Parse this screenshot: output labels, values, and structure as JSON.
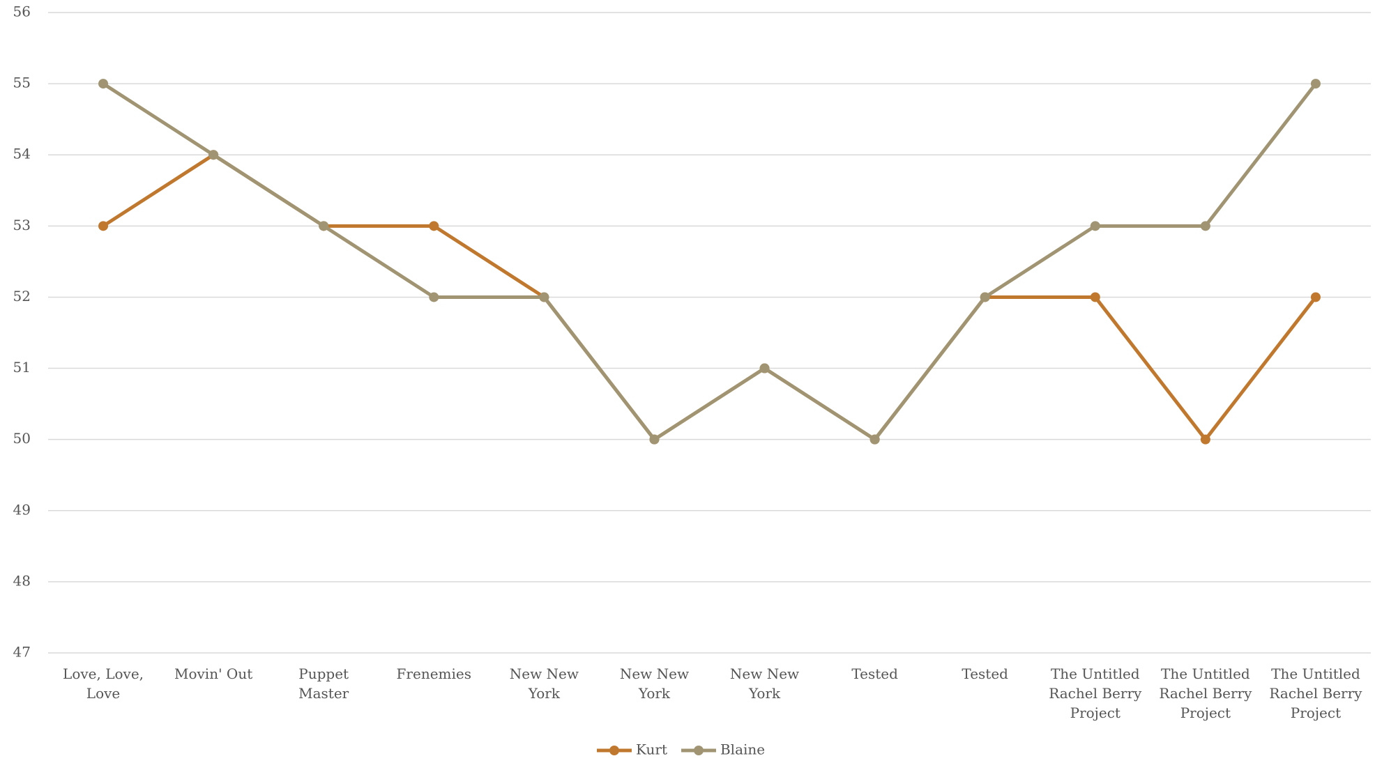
{
  "chart_data": {
    "type": "line",
    "categories": [
      "Love, Love, Love",
      "Movin' Out",
      "Puppet Master",
      "Frenemies",
      "New New York",
      "New New York",
      "New New York",
      "Tested",
      "Tested",
      "The Untitled Rachel Berry Project",
      "The Untitled Rachel Berry Project",
      "The Untitled Rachel Berry Project"
    ],
    "series": [
      {
        "name": "Kurt",
        "color": "#c0782e",
        "values": [
          53,
          54,
          53,
          53,
          52,
          50,
          51,
          50,
          52,
          52,
          50,
          52
        ]
      },
      {
        "name": "Blaine",
        "color": "#a09472",
        "values": [
          55,
          54,
          53,
          52,
          52,
          50,
          51,
          50,
          52,
          53,
          53,
          55
        ]
      }
    ],
    "ylim": [
      47,
      56
    ],
    "yticks": [
      47,
      48,
      49,
      50,
      51,
      52,
      53,
      54,
      55,
      56
    ],
    "grid": true,
    "legend": "bottom"
  }
}
